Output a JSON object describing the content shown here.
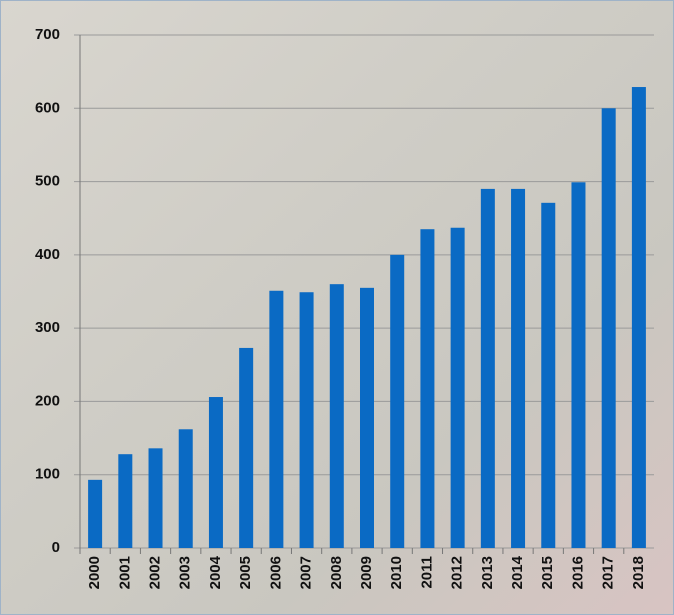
{
  "chart_data": {
    "type": "bar",
    "categories": [
      "2000",
      "2001",
      "2002",
      "2003",
      "2004",
      "2005",
      "2006",
      "2007",
      "2008",
      "2009",
      "2010",
      "2011",
      "2012",
      "2013",
      "2014",
      "2015",
      "2016",
      "2017",
      "2018"
    ],
    "values": [
      93,
      128,
      136,
      162,
      206,
      273,
      351,
      349,
      360,
      355,
      400,
      435,
      437,
      490,
      490,
      471,
      499,
      600,
      629
    ],
    "color": "#0a6ac4",
    "ylim": [
      0,
      700
    ],
    "yticks": [
      0,
      100,
      200,
      300,
      400,
      500,
      600,
      700
    ],
    "grid": true
  }
}
